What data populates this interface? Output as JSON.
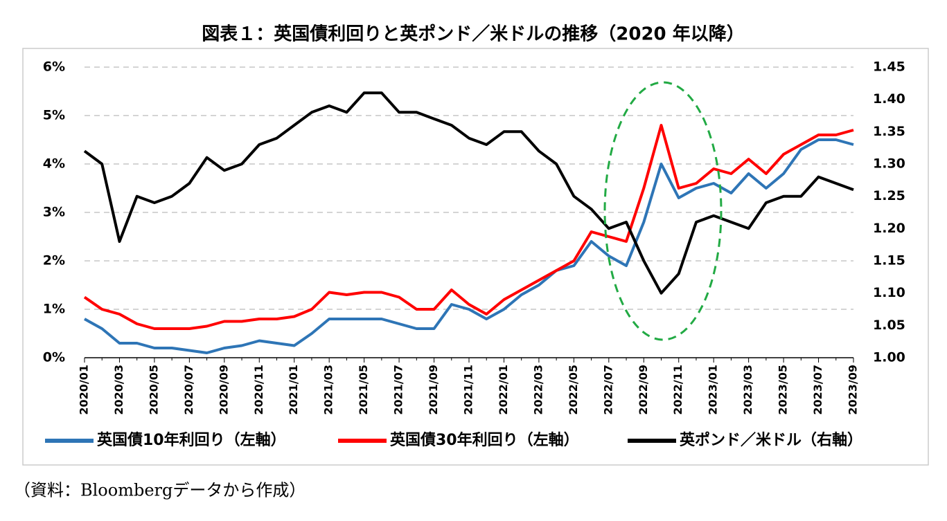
{
  "chart_data": {
    "type": "line",
    "title": "図表１：英国債利回りと英ポンド／米ドルの推移（2020 年以降）",
    "source": "（資料：Bloombergデータから作成）",
    "x": [
      "2020/01",
      null,
      "2020/03",
      null,
      "2020/05",
      null,
      "2020/07",
      null,
      "2020/09",
      null,
      "2020/11",
      null,
      "2021/01",
      null,
      "2021/03",
      null,
      "2021/05",
      null,
      "2021/07",
      null,
      "2021/09",
      null,
      "2021/11",
      null,
      "2022/01",
      null,
      "2022/03",
      null,
      "2022/05",
      null,
      "2022/07",
      null,
      "2022/09",
      null,
      "2022/11",
      null,
      "2023/01",
      null,
      "2023/03",
      null,
      "2023/05",
      null,
      "2023/07",
      null,
      "2023/09"
    ],
    "series": [
      {
        "name": "英国債10年利回り（左軸）",
        "color": "#2e75b6",
        "axis": "y",
        "values": [
          0.8,
          0.6,
          0.3,
          0.3,
          0.2,
          0.2,
          0.15,
          0.1,
          0.2,
          0.25,
          0.35,
          0.3,
          0.25,
          0.5,
          0.8,
          0.8,
          0.8,
          0.8,
          0.7,
          0.6,
          0.6,
          1.1,
          1.0,
          0.8,
          1.0,
          1.3,
          1.5,
          1.8,
          1.9,
          2.4,
          2.1,
          1.9,
          2.8,
          4.0,
          3.3,
          3.5,
          3.6,
          3.4,
          3.8,
          3.5,
          3.8,
          4.3,
          4.5,
          4.5,
          4.4
        ]
      },
      {
        "name": "英国債30年利回り（左軸）",
        "color": "#ff0000",
        "axis": "y",
        "values": [
          1.25,
          1.0,
          0.9,
          0.7,
          0.6,
          0.6,
          0.6,
          0.65,
          0.75,
          0.75,
          0.8,
          0.8,
          0.85,
          1.0,
          1.35,
          1.3,
          1.35,
          1.35,
          1.25,
          1.0,
          1.0,
          1.4,
          1.1,
          0.9,
          1.2,
          1.4,
          1.6,
          1.8,
          2.0,
          2.6,
          2.5,
          2.4,
          3.5,
          4.8,
          3.5,
          3.6,
          3.9,
          3.8,
          4.1,
          3.8,
          4.2,
          4.4,
          4.6,
          4.6,
          4.7
        ]
      },
      {
        "name": "英ポンド／米ドル（右軸）",
        "color": "#000000",
        "axis": "y2",
        "values": [
          1.32,
          1.3,
          1.18,
          1.25,
          1.24,
          1.25,
          1.27,
          1.31,
          1.29,
          1.3,
          1.33,
          1.34,
          1.36,
          1.38,
          1.39,
          1.38,
          1.41,
          1.41,
          1.38,
          1.38,
          1.37,
          1.36,
          1.34,
          1.33,
          1.35,
          1.35,
          1.32,
          1.3,
          1.25,
          1.23,
          1.2,
          1.21,
          1.15,
          1.1,
          1.13,
          1.21,
          1.22,
          1.21,
          1.2,
          1.24,
          1.25,
          1.25,
          1.28,
          1.27,
          1.26
        ]
      }
    ],
    "ylim": [
      0,
      6
    ],
    "yticks": [
      {
        "value": 0,
        "label": "0%"
      },
      {
        "value": 1,
        "label": "1%"
      },
      {
        "value": 2,
        "label": "2%"
      },
      {
        "value": 3,
        "label": "3%"
      },
      {
        "value": 4,
        "label": "4%"
      },
      {
        "value": 5,
        "label": "5%"
      },
      {
        "value": 6,
        "label": "6%"
      }
    ],
    "y2lim": [
      1.0,
      1.45
    ],
    "y2ticks": [
      {
        "value": 1.0,
        "label": "1.00"
      },
      1.05,
      {
        "value": 1.1,
        "label": "1.10"
      },
      1.15,
      {
        "value": 1.2,
        "label": "1.20"
      },
      1.25,
      {
        "value": 1.3,
        "label": "1.30"
      },
      1.35,
      {
        "value": 1.4,
        "label": "1.40"
      },
      1.45
    ],
    "grid": true
  }
}
